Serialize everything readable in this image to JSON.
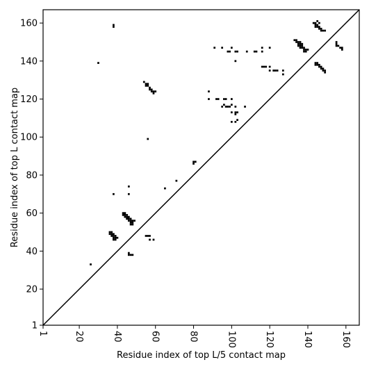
{
  "chart_data": {
    "type": "heatmap",
    "title": "",
    "xlabel": "Residue index of top L/5 contact map",
    "ylabel": "Residue index of top L contact map",
    "xlim": [
      1,
      167
    ],
    "ylim": [
      1,
      167
    ],
    "x_ticks": [
      1,
      20,
      40,
      60,
      80,
      100,
      120,
      140,
      160
    ],
    "y_ticks": [
      1,
      20,
      40,
      60,
      80,
      100,
      120,
      140,
      160
    ],
    "x_tick_labels": [
      "1",
      "20",
      "40",
      "60",
      "80",
      "100",
      "120",
      "140",
      "160"
    ],
    "y_tick_labels": [
      "1",
      "20",
      "40",
      "60",
      "80",
      "100",
      "120",
      "140",
      "160"
    ],
    "diagonal": true,
    "grid": false,
    "cell_color": "#000000",
    "contacts": [
      [
        30,
        139
      ],
      [
        38,
        158
      ],
      [
        38,
        159
      ],
      [
        54,
        129
      ],
      [
        55,
        128
      ],
      [
        55,
        127
      ],
      [
        56,
        127
      ],
      [
        56,
        128
      ],
      [
        57,
        126
      ],
      [
        57,
        125
      ],
      [
        58,
        125
      ],
      [
        58,
        124
      ],
      [
        59,
        124
      ],
      [
        59,
        123
      ],
      [
        60,
        124
      ],
      [
        56,
        99
      ],
      [
        88,
        124
      ],
      [
        88,
        120
      ],
      [
        91,
        147
      ],
      [
        95,
        147
      ],
      [
        92,
        120
      ],
      [
        93,
        120
      ],
      [
        96,
        120
      ],
      [
        97,
        120
      ],
      [
        95,
        116
      ],
      [
        96,
        117
      ],
      [
        97,
        116
      ],
      [
        98,
        116
      ],
      [
        99,
        116
      ],
      [
        100,
        117
      ],
      [
        100,
        120
      ],
      [
        102,
        116
      ],
      [
        100,
        113
      ],
      [
        102,
        113
      ],
      [
        103,
        113
      ],
      [
        102,
        112
      ],
      [
        103,
        109
      ],
      [
        102,
        108
      ],
      [
        100,
        108
      ],
      [
        107,
        116
      ],
      [
        98,
        145
      ],
      [
        99,
        145
      ],
      [
        100,
        147
      ],
      [
        102,
        145
      ],
      [
        103,
        145
      ],
      [
        102,
        140
      ],
      [
        108,
        145
      ],
      [
        112,
        145
      ],
      [
        113,
        145
      ],
      [
        116,
        145
      ],
      [
        116,
        147
      ],
      [
        120,
        147
      ],
      [
        116,
        137
      ],
      [
        117,
        137
      ],
      [
        118,
        137
      ],
      [
        120,
        137
      ],
      [
        120,
        135
      ],
      [
        122,
        135
      ],
      [
        123,
        135
      ],
      [
        124,
        135
      ],
      [
        127,
        135
      ],
      [
        127,
        133
      ],
      [
        133,
        151
      ],
      [
        134,
        151
      ],
      [
        134,
        150
      ],
      [
        135,
        150
      ],
      [
        135,
        149
      ],
      [
        136,
        149
      ],
      [
        136,
        148
      ],
      [
        137,
        148
      ],
      [
        137,
        147
      ],
      [
        138,
        147
      ],
      [
        138,
        146
      ],
      [
        139,
        146
      ],
      [
        139,
        145
      ],
      [
        138,
        145
      ],
      [
        136,
        150
      ],
      [
        137,
        149
      ],
      [
        140,
        146
      ],
      [
        135,
        148
      ],
      [
        136,
        147
      ],
      [
        143,
        160
      ],
      [
        144,
        160
      ],
      [
        144,
        159
      ],
      [
        145,
        159
      ],
      [
        145,
        158
      ],
      [
        144,
        158
      ],
      [
        146,
        158
      ],
      [
        146,
        157
      ],
      [
        147,
        157
      ],
      [
        147,
        156
      ],
      [
        148,
        156
      ],
      [
        149,
        156
      ],
      [
        145,
        161
      ],
      [
        146,
        160
      ],
      [
        144,
        139
      ],
      [
        145,
        139
      ],
      [
        145,
        138
      ],
      [
        146,
        138
      ],
      [
        146,
        137
      ],
      [
        147,
        137
      ],
      [
        147,
        136
      ],
      [
        148,
        136
      ],
      [
        148,
        135
      ],
      [
        149,
        135
      ],
      [
        149,
        134
      ],
      [
        144,
        138
      ],
      [
        155,
        150
      ],
      [
        155,
        149
      ],
      [
        155,
        148
      ],
      [
        156,
        148
      ],
      [
        157,
        147
      ],
      [
        158,
        147
      ],
      [
        158,
        146
      ],
      [
        26,
        33
      ],
      [
        38,
        70
      ],
      [
        46,
        74
      ],
      [
        46,
        70
      ],
      [
        65,
        73
      ],
      [
        71,
        77
      ],
      [
        80,
        86
      ],
      [
        80,
        87
      ],
      [
        81,
        87
      ],
      [
        36,
        50
      ],
      [
        37,
        50
      ],
      [
        37,
        49
      ],
      [
        38,
        49
      ],
      [
        38,
        48
      ],
      [
        39,
        48
      ],
      [
        39,
        47
      ],
      [
        38,
        47
      ],
      [
        39,
        46
      ],
      [
        40,
        47
      ],
      [
        37,
        48
      ],
      [
        36,
        49
      ],
      [
        38,
        46
      ],
      [
        43,
        60
      ],
      [
        44,
        60
      ],
      [
        44,
        59
      ],
      [
        45,
        59
      ],
      [
        45,
        58
      ],
      [
        46,
        58
      ],
      [
        46,
        57
      ],
      [
        47,
        57
      ],
      [
        47,
        56
      ],
      [
        48,
        56
      ],
      [
        48,
        55
      ],
      [
        47,
        55
      ],
      [
        49,
        56
      ],
      [
        43,
        59
      ],
      [
        44,
        58
      ],
      [
        45,
        57
      ],
      [
        46,
        56
      ],
      [
        47,
        54
      ],
      [
        48,
        54
      ],
      [
        46,
        39
      ],
      [
        47,
        38
      ],
      [
        48,
        38
      ],
      [
        46,
        38
      ],
      [
        55,
        48
      ],
      [
        56,
        48
      ],
      [
        57,
        48
      ],
      [
        57,
        46
      ],
      [
        59,
        46
      ]
    ]
  }
}
